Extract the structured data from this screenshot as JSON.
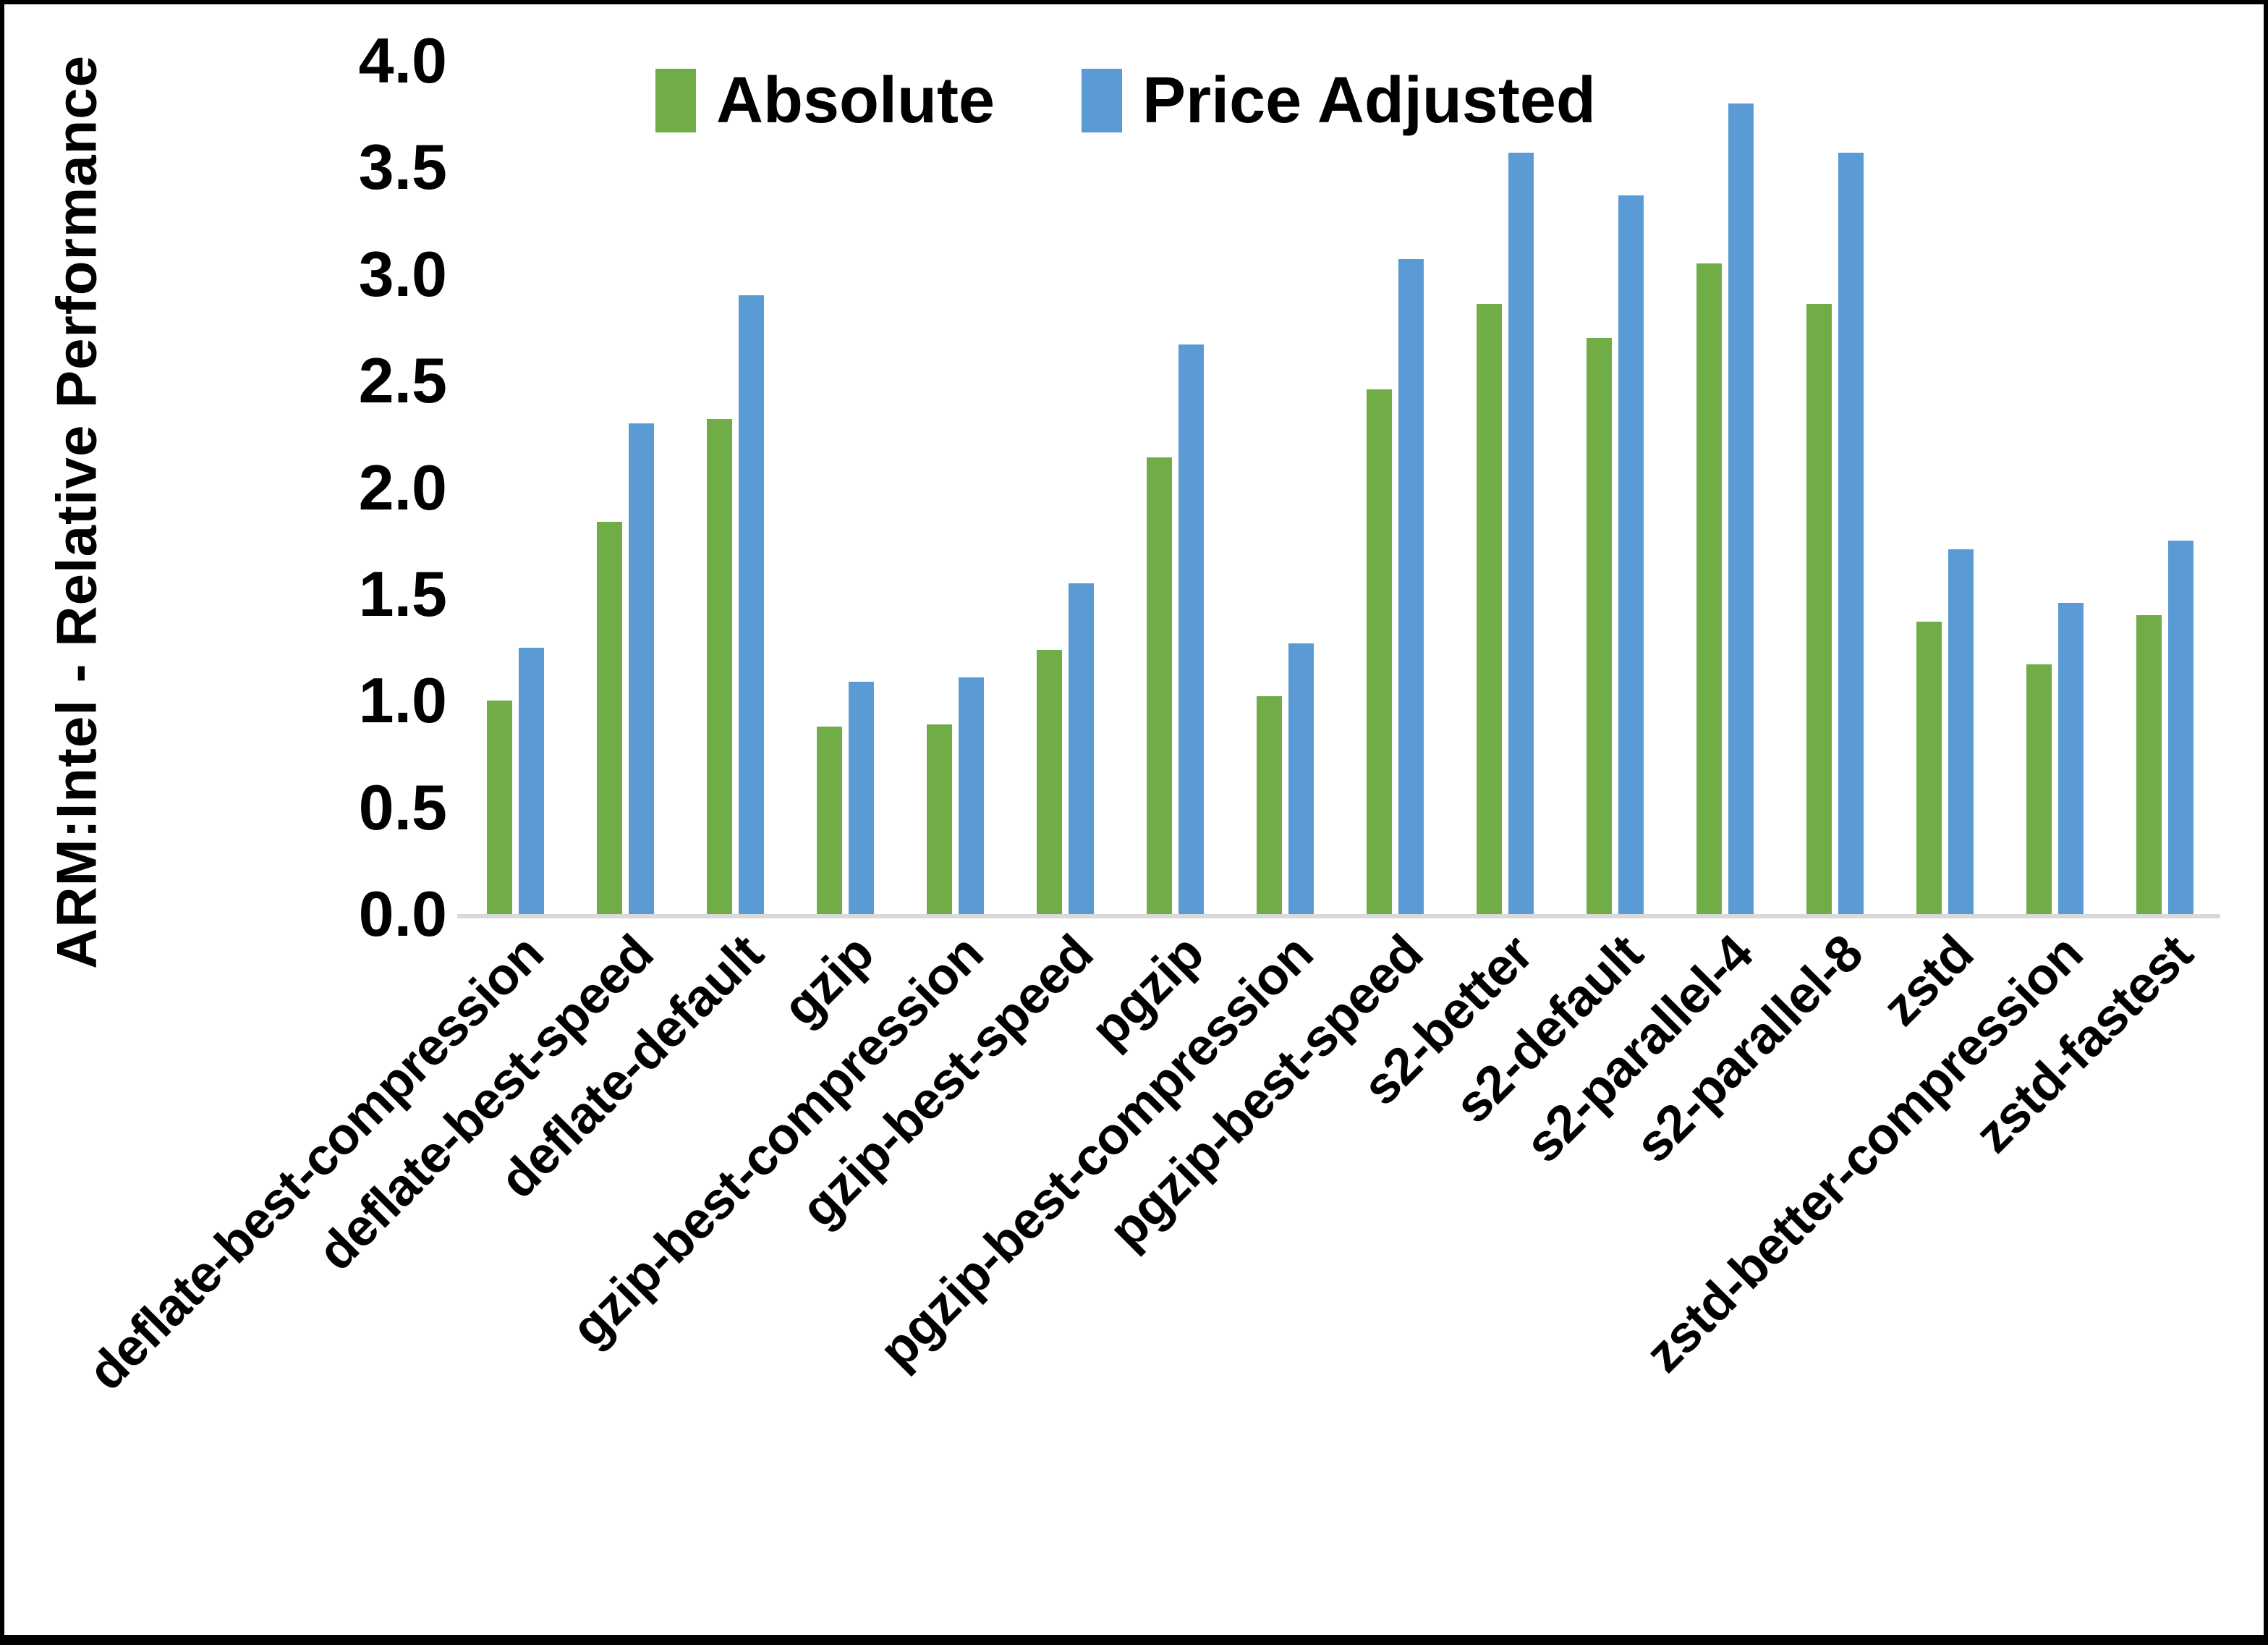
{
  "chart_data": {
    "type": "bar",
    "title": "",
    "ylabel": "ARM:Intel - Relative Performance",
    "xlabel": "",
    "ylim": [
      0.0,
      4.0
    ],
    "ytick_step": 0.5,
    "yticks": [
      "4.0",
      "3.5",
      "3.0",
      "2.5",
      "2.0",
      "1.5",
      "1.0",
      "0.5",
      "0.0"
    ],
    "grid": false,
    "legend_position": "top-center",
    "categories": [
      "deflate-best-compression",
      "deflate-best-speed",
      "deflate-default",
      "gzip",
      "gzip-best-compression",
      "gzip-best-speed",
      "pgzip",
      "pgzip-best-compression",
      "pgzip-best-speed",
      "s2-better",
      "s2-default",
      "s2-parallel-4",
      "s2-parallel-8",
      "zstd",
      "zstd-better-compression",
      "zstd-fastest"
    ],
    "series": [
      {
        "name": "Absolute",
        "color": "#70AD47",
        "values": [
          1.0,
          1.84,
          2.32,
          0.88,
          0.89,
          1.24,
          2.14,
          1.02,
          2.46,
          2.86,
          2.7,
          3.05,
          2.86,
          1.37,
          1.17,
          1.4
        ]
      },
      {
        "name": "Price Adjusted",
        "color": "#5B9BD5",
        "values": [
          1.25,
          2.3,
          2.9,
          1.09,
          1.11,
          1.55,
          2.67,
          1.27,
          3.07,
          3.57,
          3.37,
          3.8,
          3.57,
          1.71,
          1.46,
          1.75
        ]
      }
    ],
    "colors": {
      "axis_line": "#D9D9D9",
      "text": "#000000",
      "frame_border": "#000000"
    }
  }
}
